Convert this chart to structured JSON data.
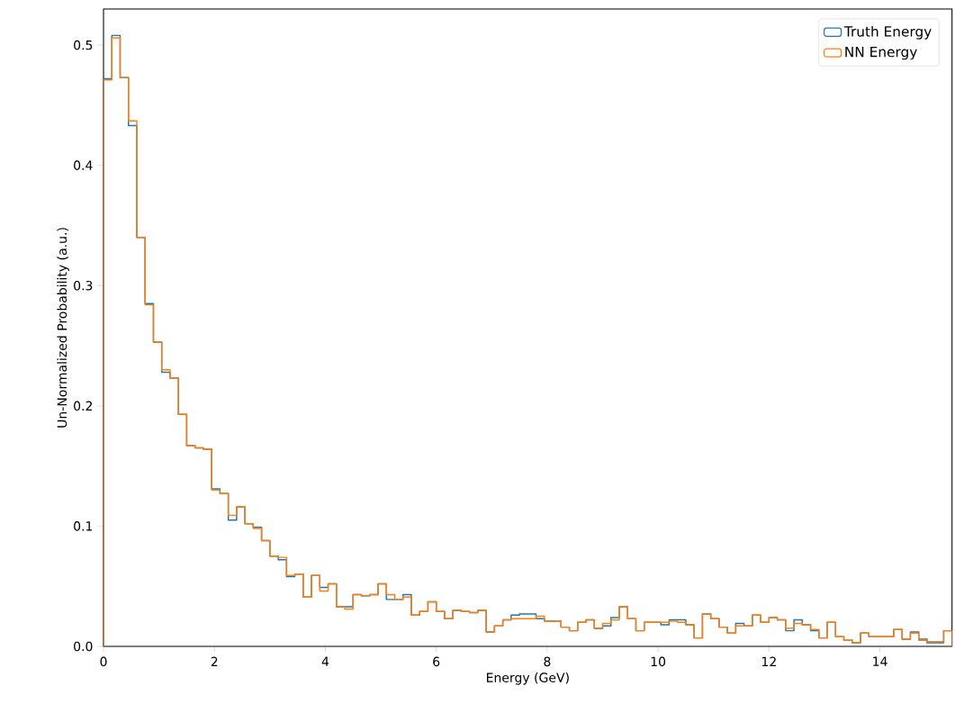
{
  "chart_data": {
    "type": "histogram",
    "xlabel": "Energy (GeV)",
    "ylabel": "Un-Normalized Probability (a.u.)",
    "bins": [
      0,
      0.15,
      0.3,
      0.45,
      0.6,
      0.75,
      0.9,
      1.05,
      1.2,
      1.35,
      1.5,
      1.65,
      1.8,
      1.95,
      2.1,
      2.25,
      2.4,
      2.55,
      2.7,
      2.85,
      3.0,
      3.15,
      3.3,
      3.45,
      3.6,
      3.75,
      3.9,
      4.05,
      4.2,
      4.35,
      4.5,
      4.65,
      4.8,
      4.95,
      5.1,
      5.25,
      5.4,
      5.55,
      5.7,
      5.85,
      6.0,
      6.15,
      6.3,
      6.45,
      6.6,
      6.75,
      6.9,
      7.05,
      7.2,
      7.35,
      7.5,
      7.65,
      7.8,
      7.95,
      8.1,
      8.25,
      8.4,
      8.55,
      8.7,
      8.85,
      9.0,
      9.15,
      9.3,
      9.45,
      9.6,
      9.75,
      9.9,
      10.05,
      10.2,
      10.35,
      10.5,
      10.65,
      10.8,
      10.95,
      11.1,
      11.25,
      11.4,
      11.55,
      11.7,
      11.85,
      12.0,
      12.15,
      12.3,
      12.45,
      12.6,
      12.75,
      12.9,
      13.05,
      13.2,
      13.35,
      13.5,
      13.65,
      13.8,
      13.95,
      14.1,
      14.25,
      14.4,
      14.55,
      14.7,
      14.85,
      15.0,
      15.15,
      15.3
    ],
    "series": [
      {
        "name": "Truth Energy",
        "color": "#1f77b4",
        "values": [
          0.472,
          0.508,
          0.473,
          0.433,
          0.34,
          0.285,
          0.253,
          0.228,
          0.223,
          0.193,
          0.167,
          0.165,
          0.164,
          0.131,
          0.127,
          0.105,
          0.116,
          0.102,
          0.099,
          0.088,
          0.075,
          0.072,
          0.058,
          0.06,
          0.041,
          0.059,
          0.049,
          0.052,
          0.033,
          0.033,
          0.043,
          0.042,
          0.043,
          0.052,
          0.039,
          0.039,
          0.043,
          0.026,
          0.029,
          0.037,
          0.029,
          0.023,
          0.03,
          0.029,
          0.028,
          0.03,
          0.012,
          0.017,
          0.022,
          0.026,
          0.027,
          0.027,
          0.023,
          0.021,
          0.021,
          0.016,
          0.013,
          0.02,
          0.022,
          0.015,
          0.017,
          0.024,
          0.033,
          0.023,
          0.013,
          0.02,
          0.02,
          0.018,
          0.022,
          0.022,
          0.018,
          0.007,
          0.027,
          0.023,
          0.016,
          0.011,
          0.019,
          0.017,
          0.026,
          0.02,
          0.024,
          0.022,
          0.013,
          0.022,
          0.018,
          0.013,
          0.007,
          0.02,
          0.008,
          0.005,
          0.003,
          0.011,
          0.008,
          0.008,
          0.008,
          0.014,
          0.006,
          0.012,
          0.006,
          0.003,
          0.003,
          0.013
        ]
      },
      {
        "name": "NN Energy",
        "color": "#ff7f0e",
        "values": [
          0.471,
          0.506,
          0.473,
          0.437,
          0.34,
          0.284,
          0.253,
          0.23,
          0.223,
          0.193,
          0.167,
          0.165,
          0.164,
          0.13,
          0.127,
          0.109,
          0.116,
          0.102,
          0.098,
          0.088,
          0.075,
          0.074,
          0.059,
          0.06,
          0.041,
          0.059,
          0.046,
          0.052,
          0.033,
          0.031,
          0.043,
          0.042,
          0.043,
          0.052,
          0.043,
          0.039,
          0.041,
          0.026,
          0.029,
          0.037,
          0.029,
          0.023,
          0.03,
          0.029,
          0.028,
          0.03,
          0.012,
          0.017,
          0.022,
          0.023,
          0.023,
          0.023,
          0.025,
          0.021,
          0.021,
          0.016,
          0.013,
          0.02,
          0.022,
          0.015,
          0.019,
          0.022,
          0.033,
          0.023,
          0.013,
          0.02,
          0.02,
          0.02,
          0.021,
          0.02,
          0.018,
          0.007,
          0.027,
          0.023,
          0.016,
          0.011,
          0.017,
          0.017,
          0.026,
          0.02,
          0.024,
          0.022,
          0.015,
          0.019,
          0.018,
          0.014,
          0.007,
          0.02,
          0.008,
          0.005,
          0.003,
          0.011,
          0.008,
          0.008,
          0.008,
          0.014,
          0.006,
          0.011,
          0.005,
          0.004,
          0.004,
          0.013
        ]
      }
    ],
    "xlim": [
      0,
      15.3
    ],
    "ylim": [
      0,
      0.53
    ],
    "xticks": [
      0,
      2,
      4,
      6,
      8,
      10,
      12,
      14
    ],
    "yticks": [
      {
        "value": 0,
        "label": "0.0"
      },
      {
        "value": 0.1,
        "label": "0.1"
      },
      {
        "value": 0.2,
        "label": "0.2"
      },
      {
        "value": 0.3,
        "label": "0.3"
      },
      {
        "value": 0.4,
        "label": "0.4"
      },
      {
        "value": 0.5,
        "label": "0.5"
      }
    ],
    "legend": "top right",
    "grid": false
  }
}
